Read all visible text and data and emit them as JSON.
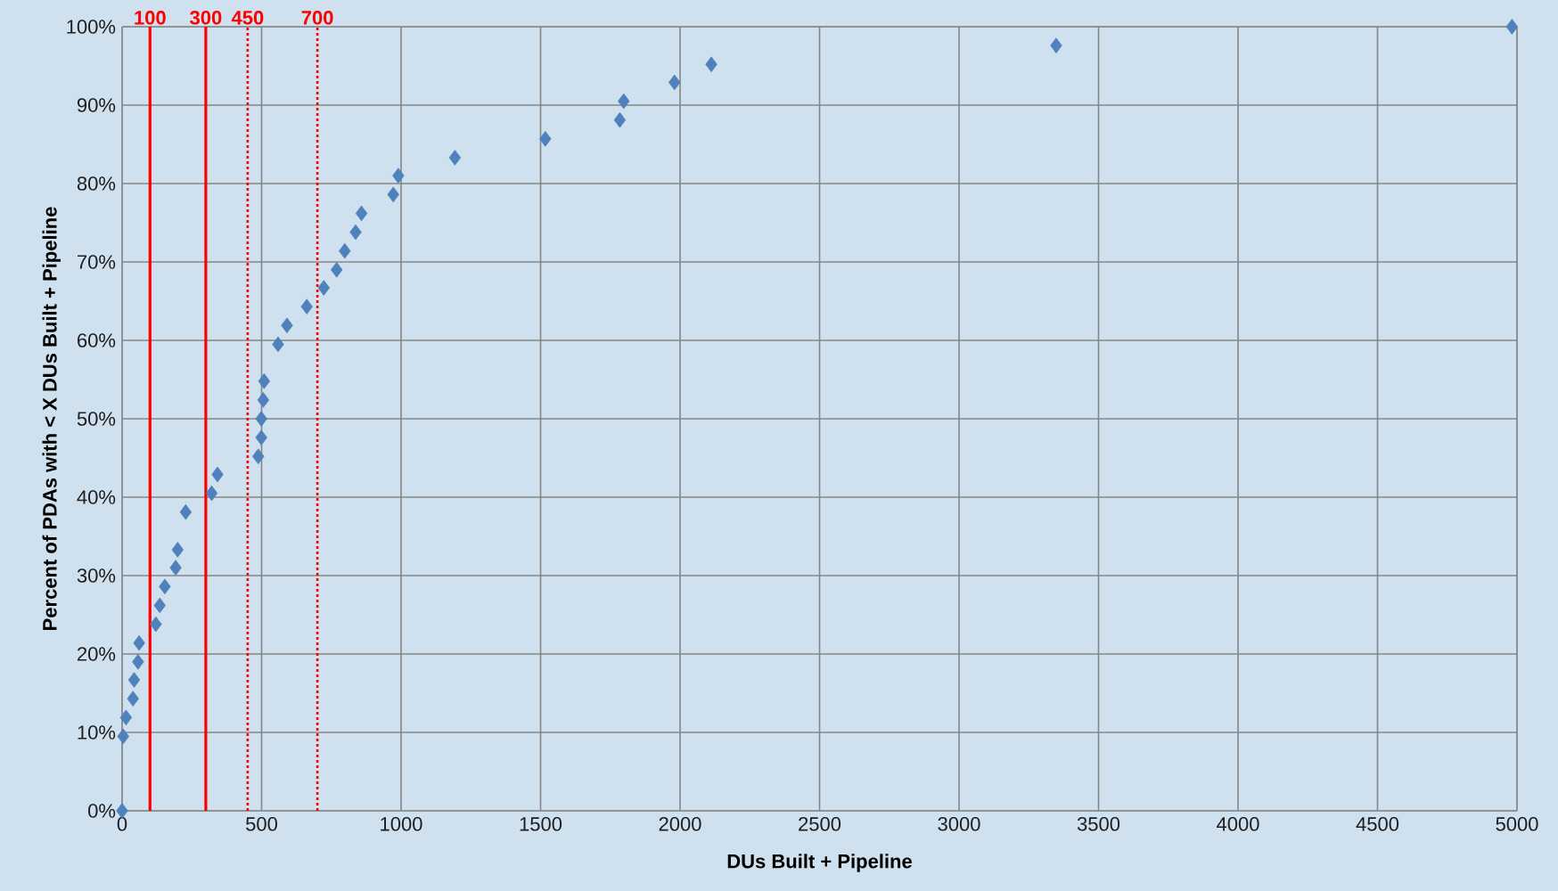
{
  "chart_data": {
    "type": "scatter",
    "xlabel": "DUs Built + Pipeline",
    "ylabel": "Percent of PDAs with < X DUs Built + Pipeline",
    "x": [
      0,
      4,
      14,
      39,
      43,
      57,
      61,
      121,
      135,
      153,
      192,
      199,
      228,
      321,
      342,
      488,
      499,
      499,
      506,
      509,
      559,
      591,
      662,
      723,
      769,
      798,
      837,
      858,
      972,
      990,
      1193,
      1517,
      1784,
      1798,
      1980,
      2112,
      3348,
      4982
    ],
    "series": [
      {
        "color": "#4f81bd",
        "values": [
          0,
          9.5,
          11.9,
          14.3,
          16.7,
          19.0,
          21.4,
          23.8,
          26.2,
          28.6,
          31.0,
          33.3,
          38.1,
          40.5,
          42.9,
          45.2,
          47.6,
          50.0,
          52.4,
          54.8,
          59.5,
          61.9,
          64.3,
          66.7,
          69.0,
          71.4,
          73.8,
          76.2,
          78.6,
          81.0,
          83.3,
          85.7,
          88.1,
          90.5,
          92.9,
          95.2,
          97.6,
          100
        ]
      }
    ],
    "marker": "diamond",
    "grid": true,
    "xlim": [
      0,
      5000
    ],
    "xticks": [
      0,
      500,
      1000,
      1500,
      2000,
      2500,
      3000,
      3500,
      4000,
      4500,
      5000
    ],
    "ylim": [
      0,
      100
    ],
    "yticks": [
      {
        "value": 0,
        "label": "0%"
      },
      {
        "value": 10,
        "label": "10%"
      },
      {
        "value": 20,
        "label": "20%"
      },
      {
        "value": 30,
        "label": "30%"
      },
      {
        "value": 40,
        "label": "40%"
      },
      {
        "value": 50,
        "label": "50%"
      },
      {
        "value": 60,
        "label": "60%"
      },
      {
        "value": 70,
        "label": "70%"
      },
      {
        "value": 80,
        "label": "80%"
      },
      {
        "value": 90,
        "label": "90%"
      },
      {
        "value": 100,
        "label": "100%"
      }
    ],
    "ref_lines": [
      {
        "axis": "x",
        "value": 100,
        "label": "100",
        "color": "#ff0000",
        "line_style": "solid"
      },
      {
        "axis": "x",
        "value": 300,
        "label": "300",
        "color": "#ff0000",
        "line_style": "solid"
      },
      {
        "axis": "x",
        "value": 450,
        "label": "450",
        "color": "#ff0000",
        "line_style": "dotted"
      },
      {
        "axis": "x",
        "value": 700,
        "label": "700",
        "color": "#ff0000",
        "line_style": "dotted"
      }
    ]
  }
}
